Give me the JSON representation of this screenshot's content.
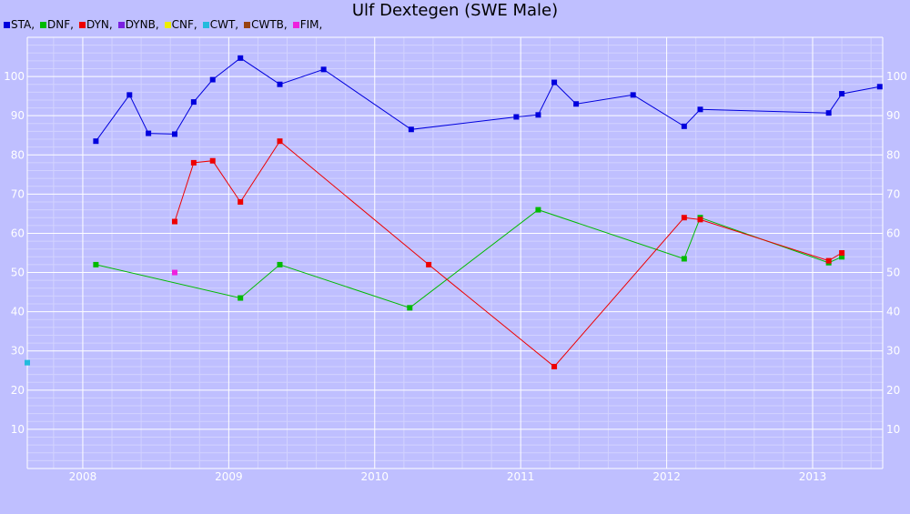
{
  "chart_data": {
    "type": "line",
    "title": "Ulf Dextegen (SWE Male)",
    "legend": [
      {
        "name": "STA",
        "color": "#0000dd",
        "suffix": ","
      },
      {
        "name": "DNF",
        "color": "#00bb00",
        "suffix": ","
      },
      {
        "name": "DYN",
        "color": "#ee0000",
        "suffix": ","
      },
      {
        "name": "DYNB",
        "color": "#7a1fe0",
        "suffix": ","
      },
      {
        "name": "CNF",
        "color": "#eeee00",
        "suffix": ","
      },
      {
        "name": "CWT",
        "color": "#22bbdd",
        "suffix": ","
      },
      {
        "name": "CWTB",
        "color": "#994411",
        "suffix": ","
      },
      {
        "name": "FIM",
        "color": "#ee22dd",
        "suffix": ","
      }
    ],
    "legend_position": "top-left",
    "grid": true,
    "xlim": [
      2007.62,
      2013.48
    ],
    "ylim": [
      0,
      110
    ],
    "x_ticks": [
      2008,
      2009,
      2010,
      2011,
      2012,
      2013
    ],
    "x_tick_labels": [
      "2008",
      "2009",
      "2010",
      "2011",
      "2012",
      "2013"
    ],
    "y_ticks": [
      10,
      20,
      30,
      40,
      50,
      60,
      70,
      80,
      90,
      100
    ],
    "y_tick_labels": [
      "10",
      "20",
      "30",
      "40",
      "50",
      "60",
      "70",
      "80",
      "90",
      "100"
    ],
    "series": [
      {
        "name": "STA",
        "color": "#0000dd",
        "points": [
          [
            2008.09,
            83.5
          ],
          [
            2008.32,
            95.3
          ],
          [
            2008.45,
            85.5
          ],
          [
            2008.63,
            85.3
          ],
          [
            2008.76,
            93.5
          ],
          [
            2008.89,
            99.2
          ],
          [
            2009.08,
            104.7
          ],
          [
            2009.35,
            98.0
          ],
          [
            2009.65,
            101.8
          ],
          [
            2010.25,
            86.5
          ],
          [
            2010.97,
            89.7
          ],
          [
            2011.12,
            90.2
          ],
          [
            2011.23,
            98.5
          ],
          [
            2011.38,
            93.0
          ],
          [
            2011.77,
            95.3
          ],
          [
            2012.12,
            87.3
          ],
          [
            2012.23,
            91.6
          ],
          [
            2013.11,
            90.7
          ],
          [
            2013.2,
            95.6
          ],
          [
            2013.46,
            97.4
          ]
        ]
      },
      {
        "name": "DNF",
        "color": "#00bb00",
        "points": [
          [
            2008.09,
            52.0
          ],
          [
            2009.08,
            43.5
          ],
          [
            2009.35,
            52.0
          ],
          [
            2010.24,
            41.0
          ],
          [
            2011.12,
            66.0
          ],
          [
            2012.12,
            53.5
          ],
          [
            2012.23,
            64.0
          ],
          [
            2013.11,
            52.5
          ],
          [
            2013.2,
            54.0
          ]
        ]
      },
      {
        "name": "DYN",
        "color": "#ee0000",
        "points": [
          [
            2008.63,
            63.0
          ],
          [
            2008.76,
            78.0
          ],
          [
            2008.89,
            78.5
          ],
          [
            2009.08,
            68.0
          ],
          [
            2009.35,
            83.5
          ],
          [
            2010.37,
            52.0
          ],
          [
            2011.23,
            26.0
          ],
          [
            2012.12,
            64.0
          ],
          [
            2012.23,
            63.5
          ],
          [
            2013.11,
            53.0
          ],
          [
            2013.2,
            55.0
          ]
        ]
      },
      {
        "name": "CWT",
        "color": "#22bbdd",
        "points": [
          [
            2007.62,
            27.0
          ]
        ]
      },
      {
        "name": "FIM",
        "color": "#ee22dd",
        "points": [
          [
            2008.63,
            50.0
          ]
        ]
      }
    ]
  }
}
